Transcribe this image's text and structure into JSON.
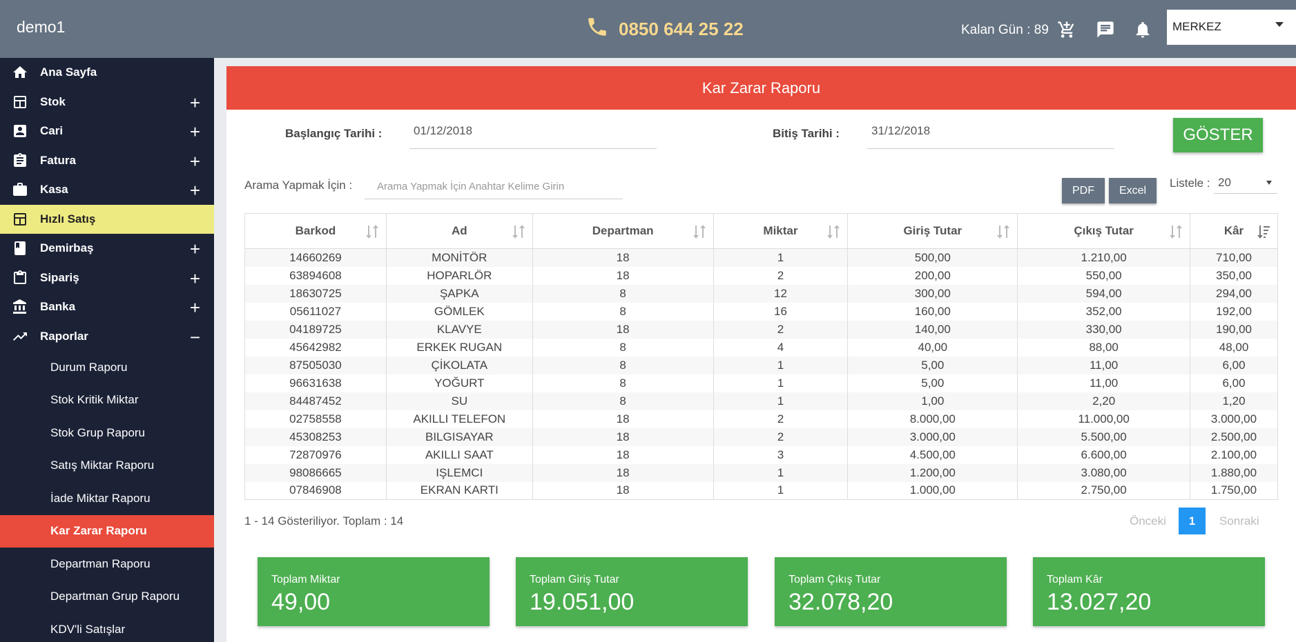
{
  "topbar": {
    "brand": "demo1",
    "phone": "0850 644 25 22",
    "remaining_days": "Kalan Gün : 89",
    "branch": "MERKEZ",
    "icons": [
      "cart-icon",
      "message-icon",
      "bell-icon"
    ]
  },
  "sidebar": {
    "items": [
      {
        "label": "Ana Sayfa",
        "icon": "home-icon",
        "expandable": false
      },
      {
        "label": "Stok",
        "icon": "stock-icon",
        "expandable": true
      },
      {
        "label": "Cari",
        "icon": "account-icon",
        "expandable": true
      },
      {
        "label": "Fatura",
        "icon": "clipboard-icon",
        "expandable": true
      },
      {
        "label": "Kasa",
        "icon": "briefcase-icon",
        "expandable": true
      },
      {
        "label": "Hızlı Satış",
        "icon": "calculator-icon",
        "expandable": false
      },
      {
        "label": "Demirbaş",
        "icon": "book-icon",
        "expandable": true
      },
      {
        "label": "Sipariş",
        "icon": "clipboard-icon",
        "expandable": true
      },
      {
        "label": "Banka",
        "icon": "bank-icon",
        "expandable": true
      },
      {
        "label": "Raporlar",
        "icon": "trending-icon",
        "expandable": true,
        "expanded": true
      }
    ],
    "subitems": [
      "Durum Raporu",
      "Stok Kritik Miktar",
      "Stok Grup Raporu",
      "Satış Miktar Raporu",
      "İade Miktar Raporu",
      "Kar Zarar Raporu",
      "Departman Raporu",
      "Departman Grup Raporu",
      "KDV'li Satışlar"
    ],
    "plus": "+",
    "minus": "−"
  },
  "report": {
    "title": "Kar Zarar Raporu",
    "start_label": "Başlangıç Tarihi :",
    "start_value": "01/12/2018",
    "end_label": "Bitiş Tarihi :",
    "end_value": "31/12/2018",
    "show_button": "GÖSTER",
    "search_label": "Arama Yapmak İçin :",
    "search_placeholder": "Arama Yapmak İçin Anahtar Kelime Girin",
    "pdf_button": "PDF",
    "excel_button": "Excel",
    "list_label": "Listele :",
    "list_value": "20"
  },
  "table": {
    "columns": [
      "Barkod",
      "Ad",
      "Departman",
      "Miktar",
      "Giriş Tutar",
      "Çıkış Tutar",
      "Kâr"
    ],
    "rows": [
      [
        "14660269",
        "MONİTÖR",
        "18",
        "1",
        "500,00",
        "1.210,00",
        "710,00"
      ],
      [
        "63894608",
        "HOPARLÖR",
        "18",
        "2",
        "200,00",
        "550,00",
        "350,00"
      ],
      [
        "18630725",
        "ŞAPKA",
        "8",
        "12",
        "300,00",
        "594,00",
        "294,00"
      ],
      [
        "05611027",
        "GÖMLEK",
        "8",
        "16",
        "160,00",
        "352,00",
        "192,00"
      ],
      [
        "04189725",
        "KLAVYE",
        "18",
        "2",
        "140,00",
        "330,00",
        "190,00"
      ],
      [
        "45642982",
        "ERKEK RUGAN",
        "8",
        "4",
        "40,00",
        "88,00",
        "48,00"
      ],
      [
        "87505030",
        "ÇİKOLATA",
        "8",
        "1",
        "5,00",
        "11,00",
        "6,00"
      ],
      [
        "96631638",
        "YOĞURT",
        "8",
        "1",
        "5,00",
        "11,00",
        "6,00"
      ],
      [
        "84487452",
        "SU",
        "8",
        "1",
        "1,00",
        "2,20",
        "1,20"
      ],
      [
        "02758558",
        "AKILLI TELEFON",
        "18",
        "2",
        "8.000,00",
        "11.000,00",
        "3.000,00"
      ],
      [
        "45308253",
        "BILGISAYAR",
        "18",
        "2",
        "3.000,00",
        "5.500,00",
        "2.500,00"
      ],
      [
        "72870976",
        "AKILLI SAAT",
        "18",
        "3",
        "4.500,00",
        "6.600,00",
        "2.100,00"
      ],
      [
        "98086665",
        "IŞLEMCI",
        "18",
        "1",
        "1.200,00",
        "3.080,00",
        "1.880,00"
      ],
      [
        "07846908",
        "EKRAN KARTI",
        "18",
        "1",
        "1.000,00",
        "2.750,00",
        "1.750,00"
      ]
    ]
  },
  "pagination": {
    "summary": "1 - 14 Gösteriliyor. Toplam : 14",
    "prev": "Önceki",
    "current": "1",
    "next": "Sonraki"
  },
  "totals": [
    {
      "label": "Toplam Miktar",
      "value": "49,00"
    },
    {
      "label": "Toplam Giriş Tutar",
      "value": "19.051,00"
    },
    {
      "label": "Toplam Çıkış Tutar",
      "value": "32.078,20"
    },
    {
      "label": "Toplam Kâr",
      "value": "13.027,20"
    }
  ],
  "colors": {
    "topbar": "#657382",
    "sidebar": "#1b2236",
    "accent_red": "#e94b3c",
    "highlight_yellow": "#eeea82",
    "green": "#4caf50",
    "phone_text": "#f7d88e",
    "page_blue": "#2196f3"
  }
}
